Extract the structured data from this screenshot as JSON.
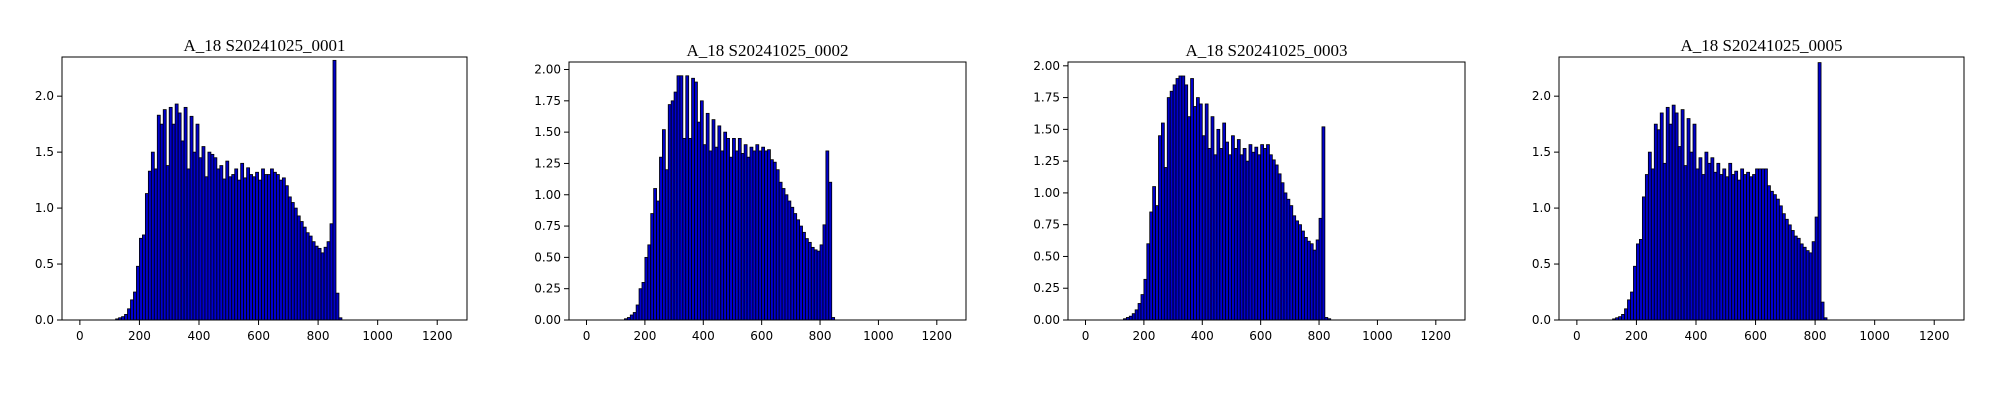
{
  "chart_data": [
    {
      "type": "bar",
      "title": "A_18 S20241025_0001",
      "xlim": [
        -60,
        1300
      ],
      "ylim": [
        0,
        2.35
      ],
      "xticks": [
        0,
        200,
        400,
        600,
        800,
        1000,
        1200
      ],
      "yticks": [
        0.0,
        0.5,
        1.0,
        1.5,
        2.0
      ],
      "ytick_labels": [
        "0.0",
        "0.5",
        "1.0",
        "1.5",
        "2.0"
      ],
      "bin_start": 120,
      "bin_width": 10,
      "bar_color": "#0000cd",
      "values": [
        0.01,
        0.02,
        0.03,
        0.05,
        0.1,
        0.18,
        0.25,
        0.48,
        0.73,
        0.76,
        1.13,
        1.33,
        1.5,
        1.35,
        1.83,
        1.75,
        1.88,
        1.38,
        1.9,
        1.75,
        1.93,
        1.85,
        1.6,
        1.9,
        1.35,
        1.82,
        1.5,
        1.75,
        1.45,
        1.55,
        1.28,
        1.5,
        1.48,
        1.45,
        1.35,
        1.38,
        1.26,
        1.42,
        1.28,
        1.3,
        1.35,
        1.25,
        1.4,
        1.27,
        1.36,
        1.3,
        1.28,
        1.32,
        1.25,
        1.35,
        1.3,
        1.3,
        1.35,
        1.32,
        1.3,
        1.25,
        1.27,
        1.2,
        1.1,
        1.05,
        1.0,
        0.93,
        0.88,
        0.83,
        0.78,
        0.75,
        0.7,
        0.66,
        0.64,
        0.6,
        0.65,
        0.7,
        0.86,
        2.32,
        0.24,
        0.02
      ]
    },
    {
      "type": "bar",
      "title": "A_18 S20241025_0002",
      "xlim": [
        -60,
        1300
      ],
      "ylim": [
        0,
        2.06
      ],
      "xticks": [
        0,
        200,
        400,
        600,
        800,
        1000,
        1200
      ],
      "yticks": [
        0.0,
        0.25,
        0.5,
        0.75,
        1.0,
        1.25,
        1.5,
        1.75,
        2.0
      ],
      "ytick_labels": [
        "0.00",
        "0.25",
        "0.50",
        "0.75",
        "1.00",
        "1.25",
        "1.50",
        "1.75",
        "2.00"
      ],
      "bin_start": 130,
      "bin_width": 10,
      "bar_color": "#0000cd",
      "values": [
        0.01,
        0.02,
        0.04,
        0.06,
        0.12,
        0.25,
        0.3,
        0.5,
        0.6,
        0.85,
        1.05,
        0.95,
        1.3,
        1.52,
        1.2,
        1.72,
        1.75,
        1.82,
        1.95,
        1.95,
        1.45,
        1.95,
        1.45,
        1.93,
        1.9,
        1.58,
        1.75,
        1.4,
        1.65,
        1.35,
        1.6,
        1.38,
        1.55,
        1.35,
        1.5,
        1.45,
        1.3,
        1.45,
        1.35,
        1.45,
        1.33,
        1.4,
        1.3,
        1.38,
        1.35,
        1.4,
        1.35,
        1.38,
        1.35,
        1.36,
        1.28,
        1.26,
        1.2,
        1.1,
        1.05,
        1.0,
        0.95,
        0.9,
        0.85,
        0.8,
        0.75,
        0.7,
        0.65,
        0.62,
        0.58,
        0.56,
        0.55,
        0.6,
        0.76,
        1.35,
        1.1,
        0.02
      ]
    },
    {
      "type": "bar",
      "title": "A_18 S20241025_0003",
      "xlim": [
        -60,
        1300
      ],
      "ylim": [
        0,
        2.03
      ],
      "xticks": [
        0,
        200,
        400,
        600,
        800,
        1000,
        1200
      ],
      "yticks": [
        0.0,
        0.25,
        0.5,
        0.75,
        1.0,
        1.25,
        1.5,
        1.75,
        2.0
      ],
      "ytick_labels": [
        "0.00",
        "0.25",
        "0.50",
        "0.75",
        "1.00",
        "1.25",
        "1.50",
        "1.75",
        "2.00"
      ],
      "bin_start": 130,
      "bin_width": 10,
      "bar_color": "#0000cd",
      "values": [
        0.01,
        0.02,
        0.03,
        0.05,
        0.08,
        0.13,
        0.2,
        0.32,
        0.6,
        0.85,
        1.05,
        0.9,
        1.45,
        1.55,
        1.2,
        1.75,
        1.8,
        1.85,
        1.9,
        1.92,
        1.92,
        1.85,
        1.6,
        1.9,
        1.68,
        1.75,
        1.7,
        1.45,
        1.7,
        1.35,
        1.6,
        1.3,
        1.5,
        1.35,
        1.55,
        1.4,
        1.3,
        1.45,
        1.35,
        1.42,
        1.3,
        1.35,
        1.25,
        1.38,
        1.32,
        1.36,
        1.3,
        1.38,
        1.35,
        1.38,
        1.3,
        1.26,
        1.22,
        1.15,
        1.08,
        1.0,
        0.95,
        0.9,
        0.82,
        0.78,
        0.75,
        0.7,
        0.65,
        0.62,
        0.6,
        0.55,
        0.63,
        0.8,
        1.52,
        0.02,
        0.01
      ]
    },
    {
      "type": "bar",
      "title": "A_18 S20241025_0005",
      "xlim": [
        -60,
        1300
      ],
      "ylim": [
        0,
        2.35
      ],
      "xticks": [
        0,
        200,
        400,
        600,
        800,
        1000,
        1200
      ],
      "yticks": [
        0.0,
        0.5,
        1.0,
        1.5,
        2.0
      ],
      "ytick_labels": [
        "0.0",
        "0.5",
        "1.0",
        "1.5",
        "2.0"
      ],
      "bin_start": 120,
      "bin_width": 10,
      "bar_color": "#0000cd",
      "values": [
        0.01,
        0.02,
        0.03,
        0.05,
        0.1,
        0.18,
        0.25,
        0.48,
        0.68,
        0.72,
        1.1,
        1.3,
        1.5,
        1.35,
        1.75,
        1.7,
        1.85,
        1.4,
        1.9,
        1.75,
        1.92,
        1.85,
        1.55,
        1.88,
        1.38,
        1.8,
        1.5,
        1.75,
        1.35,
        1.45,
        1.3,
        1.5,
        1.4,
        1.45,
        1.32,
        1.4,
        1.3,
        1.35,
        1.28,
        1.4,
        1.3,
        1.33,
        1.25,
        1.35,
        1.3,
        1.32,
        1.28,
        1.3,
        1.35,
        1.35,
        1.35,
        1.35,
        1.2,
        1.15,
        1.12,
        1.08,
        1.02,
        0.95,
        0.9,
        0.85,
        0.8,
        0.75,
        0.73,
        0.68,
        0.65,
        0.62,
        0.6,
        0.7,
        0.92,
        2.3,
        0.16,
        0.02
      ]
    }
  ]
}
